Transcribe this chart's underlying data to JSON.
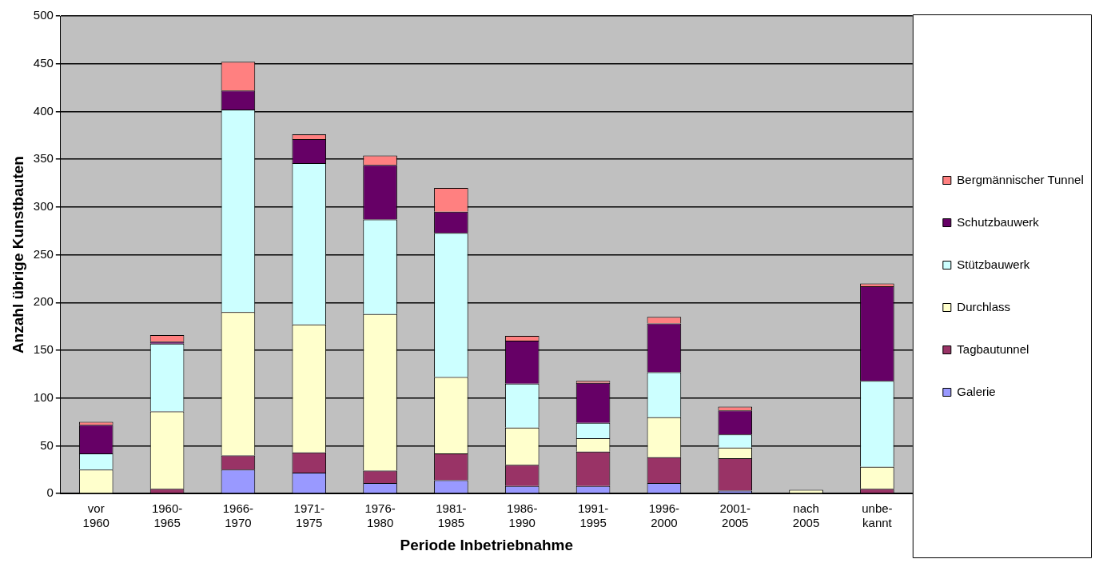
{
  "chart_data": {
    "type": "bar",
    "stacked": true,
    "xlabel": "Periode Inbetriebnahme",
    "ylabel": "Anzahl übrige Kunstbauten",
    "categories": [
      "vor 1960",
      "1960-1965",
      "1966-1970",
      "1971-1975",
      "1976-1980",
      "1981-1985",
      "1986-1990",
      "1991-1995",
      "1996-2000",
      "2001-2005",
      "nach 2005",
      "unbe-kannt"
    ],
    "series": [
      {
        "name": "Galerie",
        "color": "#9999ff",
        "values": [
          0,
          null,
          25,
          22,
          11,
          14,
          8,
          8,
          11,
          3,
          0,
          0
        ]
      },
      {
        "name": "Tagbautunnel",
        "color": "#993366",
        "values": [
          null,
          5,
          15,
          21,
          13,
          28,
          22,
          36,
          27,
          34,
          0,
          5
        ]
      },
      {
        "name": "Durchlass",
        "color": "#ffffcc",
        "values": [
          25,
          81,
          150,
          134,
          164,
          80,
          39,
          14,
          42,
          11,
          4,
          23
        ]
      },
      {
        "name": "Stützbauwerk",
        "color": "#ccffff",
        "values": [
          17,
          71,
          212,
          169,
          99,
          151,
          46,
          16,
          47,
          14,
          0,
          90
        ]
      },
      {
        "name": "Schutzbauwerk",
        "color": "#660066",
        "values": [
          30,
          2,
          20,
          25,
          57,
          22,
          45,
          42,
          51,
          25,
          0,
          99
        ]
      },
      {
        "name": "Bergmännischer Tunnel",
        "color": "#ff8080",
        "values": [
          3,
          7,
          30,
          5,
          10,
          25,
          5,
          2,
          7,
          4,
          0,
          3
        ]
      }
    ],
    "ylim": [
      0,
      500
    ],
    "yticks": [
      0,
      50,
      100,
      150,
      200,
      250,
      300,
      350,
      400,
      450,
      500
    ],
    "grid": "y",
    "legend": "right"
  }
}
